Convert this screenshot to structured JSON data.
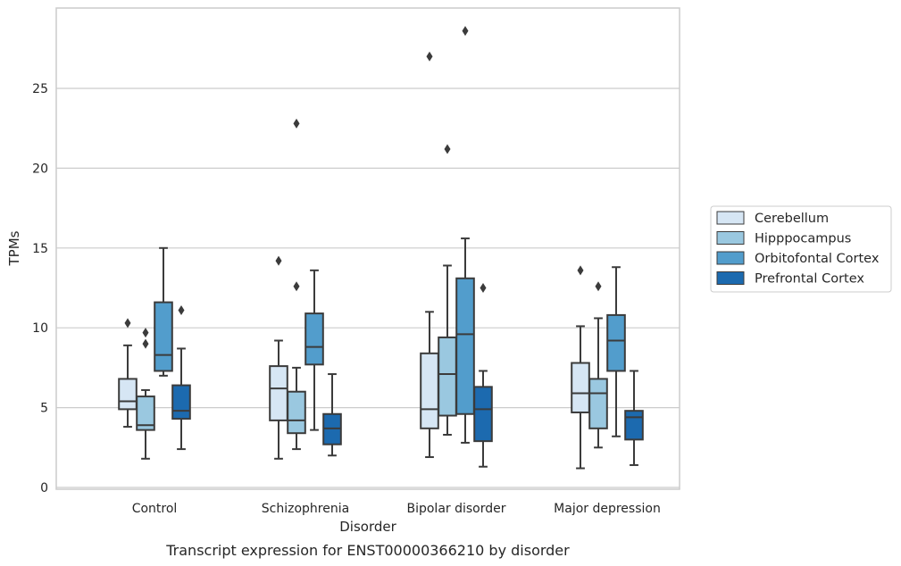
{
  "chart_data": {
    "type": "box",
    "title": "",
    "caption": "Transcript expression for ENST00000366210 by disorder",
    "xlabel": "Disorder",
    "ylabel": "TPMs",
    "ylim": [
      0,
      29.9
    ],
    "yticks": [
      0,
      5,
      10,
      15,
      20,
      25
    ],
    "grid": "horizontal",
    "legend_position": "right",
    "categories": [
      "Control",
      "Schizophrenia",
      "Bipolar disorder",
      "Major depression"
    ],
    "series": [
      {
        "name": "Cerebellum",
        "color": "#d6e6f4",
        "boxes": [
          {
            "whisker_low": 3.8,
            "q1": 4.9,
            "median": 5.4,
            "q3": 6.8,
            "whisker_high": 8.9,
            "outliers": [
              10.3
            ]
          },
          {
            "whisker_low": 1.8,
            "q1": 4.2,
            "median": 6.2,
            "q3": 7.6,
            "whisker_high": 9.2,
            "outliers": [
              14.2
            ]
          },
          {
            "whisker_low": 1.9,
            "q1": 3.7,
            "median": 4.9,
            "q3": 8.4,
            "whisker_high": 11.0,
            "outliers": [
              27.0
            ]
          },
          {
            "whisker_low": 1.2,
            "q1": 4.7,
            "median": 5.9,
            "q3": 7.8,
            "whisker_high": 10.1,
            "outliers": [
              13.6
            ]
          }
        ]
      },
      {
        "name": "Hipppocampus",
        "color": "#9ac8e0",
        "boxes": [
          {
            "whisker_low": 1.8,
            "q1": 3.6,
            "median": 3.9,
            "q3": 5.7,
            "whisker_high": 6.1,
            "outliers": [
              9.0,
              9.7
            ]
          },
          {
            "whisker_low": 2.4,
            "q1": 3.4,
            "median": 4.2,
            "q3": 6.0,
            "whisker_high": 7.5,
            "outliers": [
              12.6,
              22.8
            ]
          },
          {
            "whisker_low": 3.3,
            "q1": 4.5,
            "median": 7.1,
            "q3": 9.4,
            "whisker_high": 13.9,
            "outliers": [
              21.2
            ]
          },
          {
            "whisker_low": 2.5,
            "q1": 3.7,
            "median": 5.9,
            "q3": 6.8,
            "whisker_high": 10.6,
            "outliers": [
              12.6
            ]
          }
        ]
      },
      {
        "name": "Orbitofontal Cortex",
        "color": "#529dcc",
        "boxes": [
          {
            "whisker_low": 7.0,
            "q1": 7.3,
            "median": 8.3,
            "q3": 11.6,
            "whisker_high": 15.0,
            "outliers": []
          },
          {
            "whisker_low": 3.6,
            "q1": 7.7,
            "median": 8.8,
            "q3": 10.9,
            "whisker_high": 13.6,
            "outliers": []
          },
          {
            "whisker_low": 2.8,
            "q1": 4.6,
            "median": 9.6,
            "q3": 13.1,
            "whisker_high": 15.6,
            "outliers": [
              28.6
            ]
          },
          {
            "whisker_low": 3.2,
            "q1": 7.3,
            "median": 9.2,
            "q3": 10.8,
            "whisker_high": 13.8,
            "outliers": []
          }
        ]
      },
      {
        "name": "Prefrontal Cortex",
        "color": "#1c6aaf",
        "boxes": [
          {
            "whisker_low": 2.4,
            "q1": 4.3,
            "median": 4.8,
            "q3": 6.4,
            "whisker_high": 8.7,
            "outliers": [
              11.1
            ]
          },
          {
            "whisker_low": 2.0,
            "q1": 2.7,
            "median": 3.7,
            "q3": 4.6,
            "whisker_high": 7.1,
            "outliers": []
          },
          {
            "whisker_low": 1.3,
            "q1": 2.9,
            "median": 4.9,
            "q3": 6.3,
            "whisker_high": 7.3,
            "outliers": [
              12.5
            ]
          },
          {
            "whisker_low": 1.4,
            "q1": 3.0,
            "median": 4.4,
            "q3": 4.8,
            "whisker_high": 7.3,
            "outliers": []
          }
        ]
      }
    ]
  }
}
